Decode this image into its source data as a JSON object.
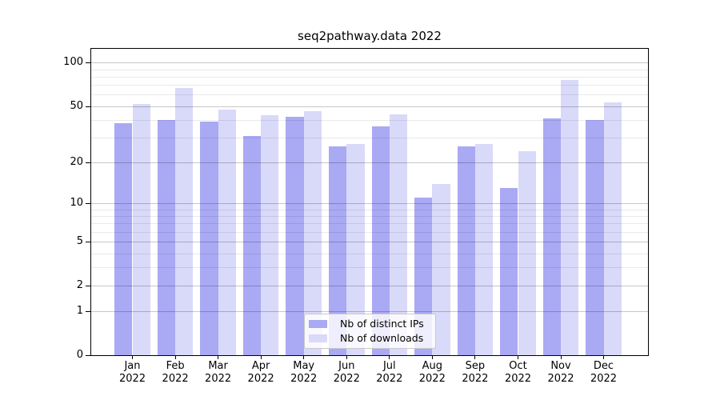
{
  "chart_data": {
    "type": "bar",
    "title": "seq2pathway.data 2022",
    "categories": [
      "Jan",
      "Feb",
      "Mar",
      "Apr",
      "May",
      "Jun",
      "Jul",
      "Aug",
      "Sep",
      "Oct",
      "Nov",
      "Dec"
    ],
    "year_label": "2022",
    "series": [
      {
        "name": "Nb of distinct IPs",
        "color": "#a9a9f4",
        "values": [
          38,
          40,
          39,
          31,
          42,
          26,
          36,
          11,
          26,
          13,
          41,
          40
        ]
      },
      {
        "name": "Nb of downloads",
        "color": "#d9d9f9",
        "values": [
          52,
          67,
          47,
          43,
          46,
          27,
          44,
          14,
          27,
          24,
          76,
          53
        ]
      }
    ],
    "y_axis": {
      "scale": "log10(1+x)",
      "tick_values": [
        100,
        50,
        20,
        10,
        5,
        2,
        1,
        0
      ],
      "tick_labels": [
        "100",
        "50",
        "20",
        "10",
        "5",
        "2",
        "1",
        "0"
      ],
      "major_gridlines": [
        1,
        2,
        5,
        10,
        20,
        50,
        100
      ],
      "minor_gridlines": [
        3,
        4,
        6,
        7,
        8,
        9,
        30,
        40,
        60,
        70,
        80,
        90
      ]
    },
    "legend_position": "bottom-center",
    "grid": "on"
  }
}
